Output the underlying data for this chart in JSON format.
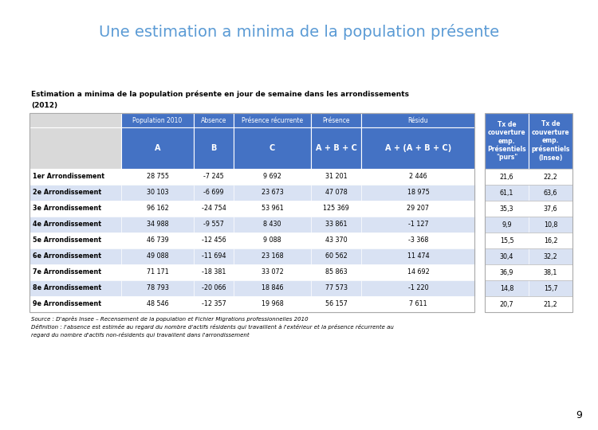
{
  "title": "Une estimation a minima de la population présente",
  "table_title_line1": "Estimation a minima de la population présente en jour de semaine dans les arrondissements",
  "table_title_line2": "(2012)",
  "header1_labels": [
    "Population 2010",
    "Absence",
    "Présence récurrente",
    "Présence",
    "Résidu"
  ],
  "header2_labels": [
    "A",
    "B",
    "C",
    "A + B + C",
    "A + (A + B + C)"
  ],
  "header_tx": [
    "Tx de\ncouverture\nemp.\nPrésentiels\n\"purs\"",
    "Tx de\ncouverture\nemp.\nprésentiels\n(Insee)"
  ],
  "rows": [
    [
      "1er Arrondissement",
      "28 755",
      "-7 245",
      "9 692",
      "31 201",
      "2 446",
      "21,6",
      "22,2"
    ],
    [
      "2e Arrondissement",
      "30 103",
      "-6 699",
      "23 673",
      "47 078",
      "18 975",
      "61,1",
      "63,6"
    ],
    [
      "3e Arrondissement",
      "96 162",
      "-24 754",
      "53 961",
      "125 369",
      "29 207",
      "35,3",
      "37,6"
    ],
    [
      "4e Arrondissement",
      "34 988",
      "-9 557",
      "8 430",
      "33 861",
      "-1 127",
      "9,9",
      "10,8"
    ],
    [
      "5e Arrondissement",
      "46 739",
      "-12 456",
      "9 088",
      "43 370",
      "-3 368",
      "15,5",
      "16,2"
    ],
    [
      "6e Arrondissement",
      "49 088",
      "-11 694",
      "23 168",
      "60 562",
      "11 474",
      "30,4",
      "32,2"
    ],
    [
      "7e Arrondissement",
      "71 171",
      "-18 381",
      "33 072",
      "85 863",
      "14 692",
      "36,9",
      "38,1"
    ],
    [
      "8e Arrondissement",
      "78 793",
      "-20 066",
      "18 846",
      "77 573",
      "-1 220",
      "14,8",
      "15,7"
    ],
    [
      "9e Arrondissement",
      "48 546",
      "-12 357",
      "19 968",
      "56 157",
      "7 611",
      "20,7",
      "21,2"
    ]
  ],
  "footnote1": "Source : D'après Insee – Recensement de la population et Fichier Migrations professionnelles 2010",
  "footnote2": "Définition : l'absence est estimée au regard du nombre d'actifs résidents qui travaillent à l'extérieur et la présence récurrente au",
  "footnote3": "regard du nombre d'actifs non-résidents qui travaillent dans l'arrondissement",
  "title_color": "#5B9BD5",
  "header_bg": "#4472C4",
  "header_fg": "#FFFFFF",
  "row_even_bg": "#FFFFFF",
  "row_odd_bg": "#D9E2F3",
  "border_col": "#FFFFFF",
  "page_bg": "#FFFFFF",
  "page_number": "9",
  "empty_header_bg": "#D9D9D9",
  "table_border": "#AAAAAA"
}
